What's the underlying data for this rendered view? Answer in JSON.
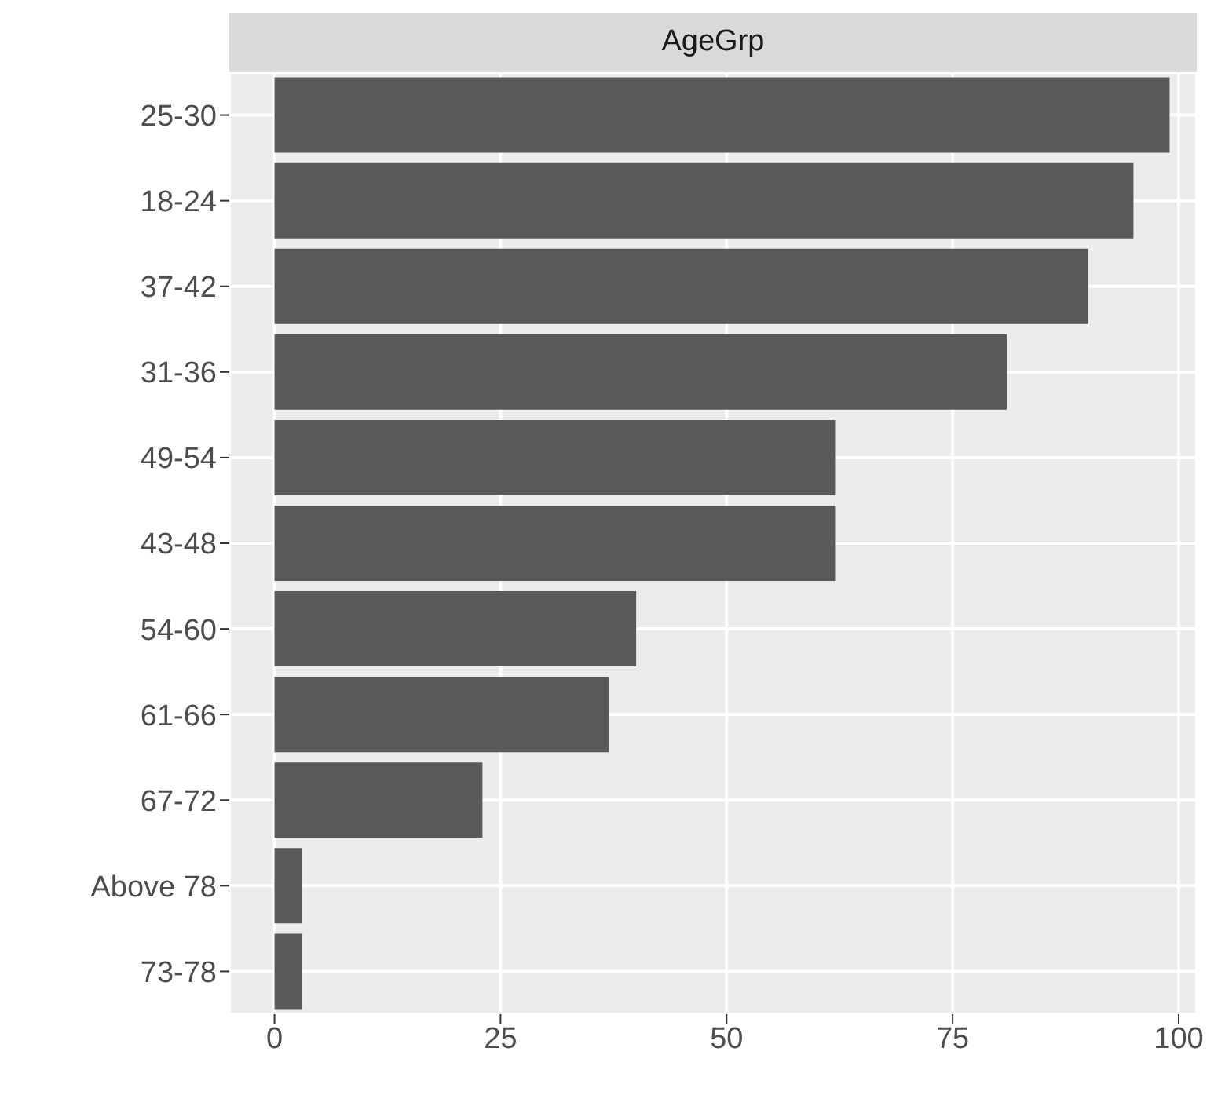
{
  "chart_data": {
    "type": "bar",
    "orientation": "horizontal",
    "title": "AgeGrp",
    "categories": [
      "25-30",
      "18-24",
      "37-42",
      "31-36",
      "49-54",
      "43-48",
      "54-60",
      "61-66",
      "67-72",
      "Above 78",
      "73-78"
    ],
    "values": [
      99,
      95,
      90,
      81,
      62,
      62,
      40,
      37,
      23,
      3,
      3
    ],
    "color": "#595959",
    "xlim": [
      -5,
      102
    ],
    "xticks": [
      0,
      25,
      50,
      75,
      100
    ],
    "grid": true
  }
}
